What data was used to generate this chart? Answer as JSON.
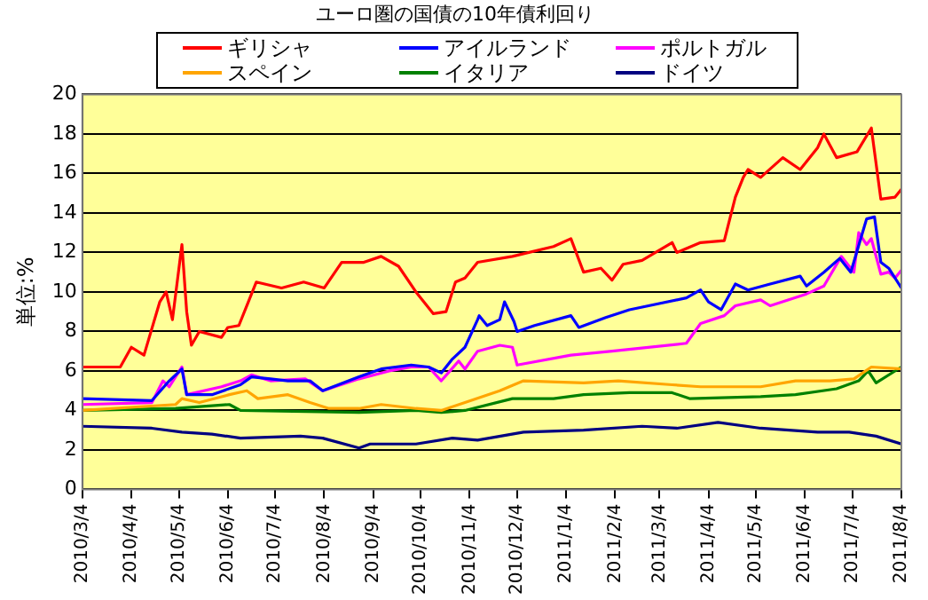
{
  "chart_data": {
    "type": "line",
    "title": "ユーロ圏の国債の10年債利回り",
    "ylabel": "単位:%",
    "xlim": [
      "2010-03-04",
      "2011-08-04"
    ],
    "xticks": [
      {
        "value": "2010-03-04",
        "label": "2010/3/4"
      },
      {
        "value": "2010-04-04",
        "label": "2010/4/4"
      },
      {
        "value": "2010-05-04",
        "label": "2010/5/4"
      },
      {
        "value": "2010-06-04",
        "label": "2010/6/4"
      },
      {
        "value": "2010-07-04",
        "label": "2010/7/4"
      },
      {
        "value": "2010-08-04",
        "label": "2010/8/4"
      },
      {
        "value": "2010-09-04",
        "label": "2010/9/4"
      },
      {
        "value": "2010-10-04",
        "label": "2010/10/4"
      },
      {
        "value": "2010-11-04",
        "label": "2010/11/4"
      },
      {
        "value": "2010-12-04",
        "label": "2010/12/4"
      },
      {
        "value": "2011-01-04",
        "label": "2011/1/4"
      },
      {
        "value": "2011-02-04",
        "label": "2011/2/4"
      },
      {
        "value": "2011-03-04",
        "label": "2011/3/4"
      },
      {
        "value": "2011-04-04",
        "label": "2011/4/4"
      },
      {
        "value": "2011-05-04",
        "label": "2011/5/4"
      },
      {
        "value": "2011-06-04",
        "label": "2011/6/4"
      },
      {
        "value": "2011-07-04",
        "label": "2011/7/4"
      },
      {
        "value": "2011-08-04",
        "label": "2011/8/4"
      }
    ],
    "ylim": [
      0,
      20
    ],
    "yticks": [
      0,
      2,
      4,
      6,
      8,
      10,
      12,
      14,
      16,
      18,
      20
    ],
    "grid": "y",
    "legend": "top",
    "marker": "none",
    "line_style": "solid",
    "series": [
      {
        "name": "ギリシャ",
        "color": "#ff0000",
        "x": [
          "2010-03-04",
          "2010-03-28",
          "2010-04-04",
          "2010-04-12",
          "2010-04-22",
          "2010-04-26",
          "2010-04-30",
          "2010-05-06",
          "2010-05-09",
          "2010-05-12",
          "2010-05-17",
          "2010-05-31",
          "2010-06-04",
          "2010-06-11",
          "2010-06-17",
          "2010-06-22",
          "2010-07-08",
          "2010-07-22",
          "2010-08-04",
          "2010-08-15",
          "2010-08-29",
          "2010-09-09",
          "2010-09-20",
          "2010-10-01",
          "2010-10-12",
          "2010-10-20",
          "2010-10-26",
          "2010-11-01",
          "2010-11-09",
          "2010-12-01",
          "2010-12-27",
          "2011-01-07",
          "2011-01-15",
          "2011-01-26",
          "2011-02-02",
          "2011-02-09",
          "2011-02-21",
          "2011-03-12",
          "2011-03-15",
          "2011-03-30",
          "2011-04-14",
          "2011-04-21",
          "2011-04-26",
          "2011-04-29",
          "2011-05-07",
          "2011-05-21",
          "2011-06-01",
          "2011-06-12",
          "2011-06-16",
          "2011-06-24",
          "2011-07-07",
          "2011-07-16",
          "2011-07-22",
          "2011-07-31",
          "2011-08-04"
        ],
        "values": [
          6.2,
          6.2,
          7.2,
          6.8,
          9.5,
          10.0,
          8.6,
          12.4,
          9.0,
          7.3,
          8.0,
          7.7,
          8.2,
          8.3,
          9.5,
          10.5,
          10.2,
          10.5,
          10.2,
          11.5,
          11.5,
          11.8,
          11.3,
          10.0,
          8.9,
          9.0,
          10.5,
          10.7,
          11.5,
          11.8,
          12.3,
          12.7,
          11.0,
          11.2,
          10.6,
          11.4,
          11.6,
          12.5,
          12.0,
          12.5,
          12.6,
          14.8,
          15.8,
          16.2,
          15.8,
          16.8,
          16.2,
          17.3,
          18.0,
          16.8,
          17.1,
          18.3,
          14.7,
          14.8,
          15.2
        ]
      },
      {
        "name": "アイルランド",
        "color": "#0000ff",
        "x": [
          "2010-03-04",
          "2010-04-17",
          "2010-04-28",
          "2010-05-06",
          "2010-05-09",
          "2010-05-25",
          "2010-06-12",
          "2010-06-19",
          "2010-07-01",
          "2010-07-12",
          "2010-07-26",
          "2010-08-03",
          "2010-08-26",
          "2010-09-09",
          "2010-09-28",
          "2010-10-09",
          "2010-10-17",
          "2010-10-24",
          "2010-11-01",
          "2010-11-09",
          "2010-11-10",
          "2010-11-15",
          "2010-11-23",
          "2010-11-26",
          "2010-12-02",
          "2010-12-04",
          "2010-12-15",
          "2011-01-07",
          "2011-01-12",
          "2011-01-29",
          "2011-02-13",
          "2011-03-21",
          "2011-03-30",
          "2011-04-04",
          "2011-04-12",
          "2011-04-21",
          "2011-04-29",
          "2011-05-13",
          "2011-06-01",
          "2011-06-05",
          "2011-06-16",
          "2011-06-26",
          "2011-07-03",
          "2011-07-13",
          "2011-07-18",
          "2011-07-22",
          "2011-07-27",
          "2011-08-04"
        ],
        "values": [
          4.6,
          4.5,
          5.5,
          6.1,
          4.8,
          4.8,
          5.3,
          5.7,
          5.6,
          5.5,
          5.5,
          5.0,
          5.7,
          6.1,
          6.3,
          6.2,
          5.9,
          6.6,
          7.2,
          8.6,
          8.8,
          8.3,
          8.6,
          9.5,
          8.5,
          8.0,
          8.3,
          8.8,
          8.2,
          8.7,
          9.1,
          9.7,
          10.1,
          9.5,
          9.1,
          10.4,
          10.1,
          10.4,
          10.8,
          10.3,
          11.0,
          11.7,
          11.0,
          13.7,
          13.8,
          11.5,
          11.2,
          10.2
        ]
      },
      {
        "name": "ポルトガル",
        "color": "#ff00ff",
        "x": [
          "2010-03-04",
          "2010-04-17",
          "2010-04-24",
          "2010-04-28",
          "2010-05-06",
          "2010-05-09",
          "2010-05-31",
          "2010-06-12",
          "2010-06-19",
          "2010-07-01",
          "2010-07-23",
          "2010-08-03",
          "2010-08-26",
          "2010-09-14",
          "2010-09-28",
          "2010-10-09",
          "2010-10-17",
          "2010-10-28",
          "2010-11-01",
          "2010-11-09",
          "2010-11-23",
          "2010-12-01",
          "2010-12-04",
          "2011-01-07",
          "2011-02-02",
          "2011-03-21",
          "2011-03-30",
          "2011-04-14",
          "2011-04-21",
          "2011-05-07",
          "2011-05-13",
          "2011-06-05",
          "2011-06-16",
          "2011-06-27",
          "2011-07-05",
          "2011-07-08",
          "2011-07-13",
          "2011-07-16",
          "2011-07-22",
          "2011-07-27",
          "2011-07-31",
          "2011-08-04"
        ],
        "values": [
          4.3,
          4.4,
          5.5,
          5.2,
          6.2,
          4.8,
          5.2,
          5.5,
          5.8,
          5.5,
          5.6,
          5.0,
          5.6,
          6.0,
          6.2,
          6.2,
          5.5,
          6.5,
          6.1,
          7.0,
          7.3,
          7.2,
          6.3,
          6.8,
          7.0,
          7.4,
          8.4,
          8.8,
          9.3,
          9.6,
          9.3,
          9.9,
          10.3,
          11.8,
          11.0,
          13.0,
          12.4,
          12.7,
          10.9,
          11.0,
          10.7,
          11.1
        ]
      },
      {
        "name": "スペイン",
        "color": "#ffa500",
        "x": [
          "2010-03-04",
          "2010-05-02",
          "2010-05-06",
          "2010-05-17",
          "2010-06-05",
          "2010-06-16",
          "2010-06-23",
          "2010-07-12",
          "2010-07-26",
          "2010-08-07",
          "2010-08-26",
          "2010-09-09",
          "2010-10-01",
          "2010-10-17",
          "2010-11-01",
          "2010-11-23",
          "2010-12-08",
          "2011-01-15",
          "2011-02-06",
          "2011-03-12",
          "2011-03-30",
          "2011-05-07",
          "2011-05-29",
          "2011-06-20",
          "2011-07-05",
          "2011-07-16",
          "2011-08-04"
        ],
        "values": [
          4.0,
          4.3,
          4.6,
          4.4,
          4.8,
          5.0,
          4.6,
          4.8,
          4.4,
          4.1,
          4.1,
          4.3,
          4.1,
          4.0,
          4.4,
          5.0,
          5.5,
          5.4,
          5.5,
          5.3,
          5.2,
          5.2,
          5.5,
          5.5,
          5.6,
          6.2,
          6.1
        ]
      },
      {
        "name": "イタリア",
        "color": "#008000",
        "x": [
          "2010-03-04",
          "2010-05-02",
          "2010-06-05",
          "2010-06-12",
          "2010-08-26",
          "2010-10-01",
          "2010-10-17",
          "2010-11-01",
          "2010-12-01",
          "2010-12-27",
          "2011-01-15",
          "2011-02-13",
          "2011-03-12",
          "2011-03-23",
          "2011-05-07",
          "2011-05-29",
          "2011-06-24",
          "2011-07-08",
          "2011-07-14",
          "2011-07-19",
          "2011-08-04"
        ],
        "values": [
          4.0,
          4.1,
          4.3,
          4.0,
          3.9,
          4.0,
          3.9,
          4.0,
          4.6,
          4.6,
          4.8,
          4.9,
          4.9,
          4.6,
          4.7,
          4.8,
          5.1,
          5.5,
          6.0,
          5.4,
          6.2
        ]
      },
      {
        "name": "ドイツ",
        "color": "#000080",
        "x": [
          "2010-03-04",
          "2010-04-17",
          "2010-05-06",
          "2010-05-25",
          "2010-06-12",
          "2010-07-20",
          "2010-08-03",
          "2010-08-26",
          "2010-09-02",
          "2010-10-01",
          "2010-10-24",
          "2010-11-09",
          "2010-12-08",
          "2011-01-15",
          "2011-02-21",
          "2011-03-15",
          "2011-04-10",
          "2011-05-07",
          "2011-06-12",
          "2011-07-02",
          "2011-07-19",
          "2011-08-04"
        ],
        "values": [
          3.2,
          3.1,
          2.9,
          2.8,
          2.6,
          2.7,
          2.6,
          2.1,
          2.3,
          2.3,
          2.6,
          2.5,
          2.9,
          3.0,
          3.2,
          3.1,
          3.4,
          3.1,
          2.9,
          2.9,
          2.7,
          2.3
        ]
      }
    ]
  }
}
